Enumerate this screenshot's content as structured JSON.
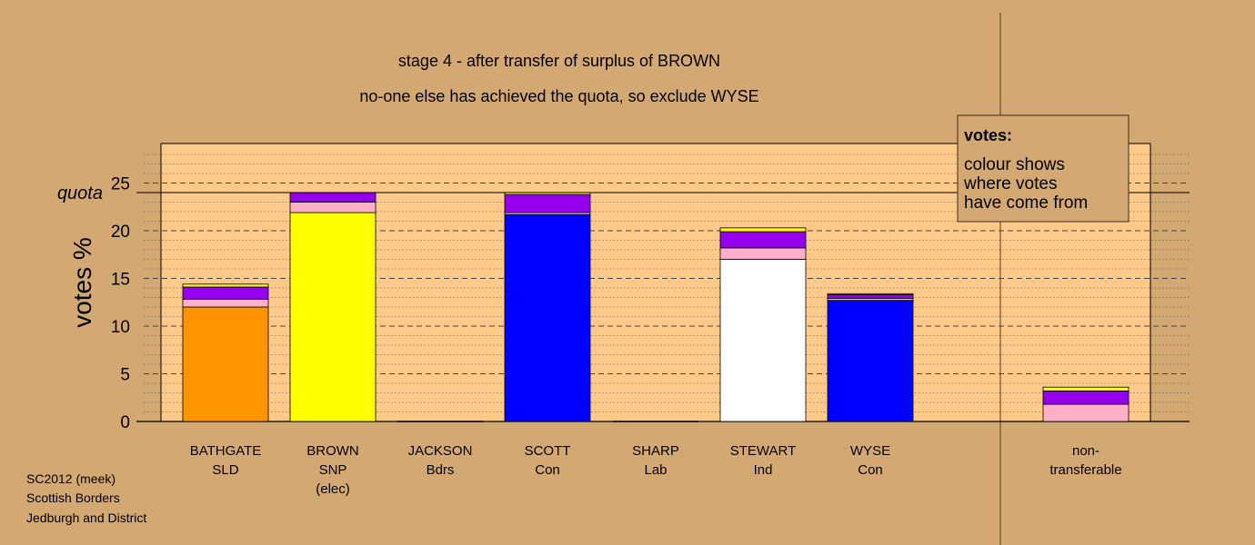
{
  "chart_data": {
    "type": "bar",
    "stacked": true,
    "title": "stage 4 - after transfer of surplus of BROWN",
    "subtitle": "no-one else has achieved the quota, so exclude WYSE",
    "ylabel": "votes %",
    "ylim": [
      0,
      29
    ],
    "yticks": [
      0,
      5,
      10,
      15,
      20,
      25
    ],
    "quota": 24,
    "quota_label": "quota",
    "grid": true,
    "categories": [
      {
        "lines": [
          "BATHGATE",
          "SLD"
        ]
      },
      {
        "lines": [
          "BROWN",
          "SNP",
          "(elec)"
        ]
      },
      {
        "lines": [
          "JACKSON",
          "Bdrs"
        ]
      },
      {
        "lines": [
          "SCOTT",
          "Con"
        ]
      },
      {
        "lines": [
          "SHARP",
          "Lab"
        ]
      },
      {
        "lines": [
          "STEWART",
          "Ind"
        ]
      },
      {
        "lines": [
          "WYSE",
          "Con"
        ]
      },
      {
        "lines": [
          "non-",
          "transferable"
        ]
      }
    ],
    "bars": [
      [
        {
          "v": 12.0,
          "c": "#ff9400"
        },
        {
          "v": 0.8,
          "c": "#ffb0c8"
        },
        {
          "v": 1.3,
          "c": "#9400ee"
        },
        {
          "v": 0.3,
          "c": "#ffff00"
        }
      ],
      [
        {
          "v": 21.9,
          "c": "#ffff00"
        },
        {
          "v": 1.1,
          "c": "#ffb0c8"
        },
        {
          "v": 1.0,
          "c": "#9400ee"
        }
      ],
      [],
      [
        {
          "v": 21.7,
          "c": "#0000ff"
        },
        {
          "v": 0.2,
          "c": "#ffb0c8"
        },
        {
          "v": 1.9,
          "c": "#9400ee"
        },
        {
          "v": 0.2,
          "c": "#ffff00"
        }
      ],
      [],
      [
        {
          "v": 17.0,
          "c": "#ffffff"
        },
        {
          "v": 1.2,
          "c": "#ffb0c8"
        },
        {
          "v": 1.7,
          "c": "#9400ee"
        },
        {
          "v": 0.4,
          "c": "#ffff00"
        }
      ],
      [
        {
          "v": 12.7,
          "c": "#0000ff"
        },
        {
          "v": 0.2,
          "c": "#ffb0c8"
        },
        {
          "v": 0.4,
          "c": "#9400ee"
        },
        {
          "v": 0.1,
          "c": "#ffff00"
        }
      ],
      [
        {
          "v": 1.8,
          "c": "#ffb0c8"
        },
        {
          "v": 1.4,
          "c": "#9400ee"
        },
        {
          "v": 0.4,
          "c": "#ffff00"
        }
      ]
    ],
    "legend": {
      "placement": "top-right",
      "heading": "votes:",
      "lines": [
        "colour shows",
        "where votes",
        "have come from"
      ]
    },
    "footer": [
      "SC2012 (meek)",
      "Scottish Borders",
      "Jedburgh and District"
    ],
    "colors": {
      "background": "#d4a873",
      "plot_background": "#ffc98a",
      "legend_background": "#d4a873"
    }
  }
}
